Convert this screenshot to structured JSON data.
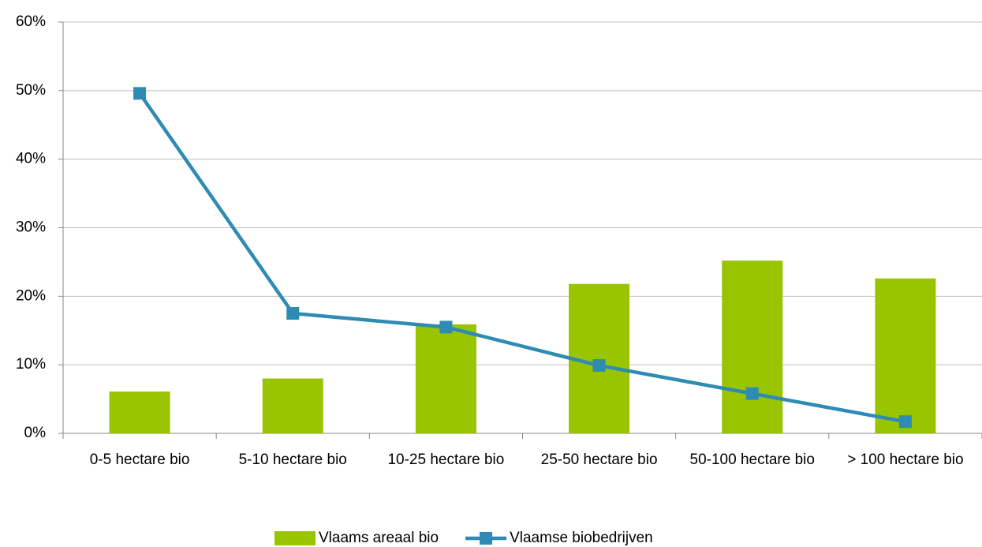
{
  "chart_data": {
    "type": "bar",
    "categories": [
      "0-5 hectare bio",
      "5-10 hectare bio",
      "10-25 hectare bio",
      "25-50 hectare bio",
      "50-100 hectare bio",
      "> 100 hectare bio"
    ],
    "series": [
      {
        "name": "Vlaams areaal bio",
        "type": "bar",
        "color": "#99c400",
        "values": [
          6.1,
          8.0,
          15.9,
          21.8,
          25.2,
          22.6
        ]
      },
      {
        "name": "Vlaamse biobedrijven",
        "type": "line",
        "color": "#2e8bb4",
        "values": [
          49.6,
          17.5,
          15.5,
          9.9,
          5.8,
          1.7
        ]
      }
    ],
    "ylim": [
      0,
      60
    ],
    "yticks": [
      {
        "value": 0,
        "label": "0%"
      },
      {
        "value": 10,
        "label": "10%"
      },
      {
        "value": 20,
        "label": "20%"
      },
      {
        "value": 30,
        "label": "30%"
      },
      {
        "value": 40,
        "label": "40%"
      },
      {
        "value": 50,
        "label": "50%"
      },
      {
        "value": 60,
        "label": "60%"
      }
    ],
    "grid": true,
    "legend": "bottom"
  }
}
